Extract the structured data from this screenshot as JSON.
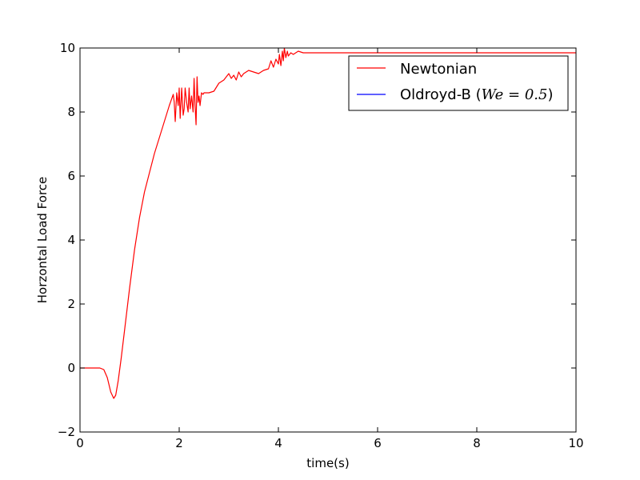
{
  "chart_data": {
    "type": "line",
    "xlabel": "time(s)",
    "ylabel": "Horzontal Load Force",
    "xlim": [
      0,
      10
    ],
    "ylim": [
      -2,
      10
    ],
    "xticks": [
      0,
      2,
      4,
      6,
      8,
      10
    ],
    "yticks": [
      -2,
      0,
      2,
      4,
      6,
      8,
      10
    ],
    "xtick_labels": [
      "0",
      "2",
      "4",
      "6",
      "8",
      "10"
    ],
    "ytick_labels": [
      "−2",
      "0",
      "2",
      "4",
      "6",
      "8",
      "10"
    ],
    "grid": false,
    "legend_position": "top-right",
    "series": [
      {
        "name": "Newtonian",
        "color": "#ff0000",
        "x": [
          0.0,
          0.2,
          0.4,
          0.48,
          0.55,
          0.62,
          0.68,
          0.72,
          0.77,
          0.83,
          0.9,
          1.0,
          1.1,
          1.2,
          1.3,
          1.4,
          1.5,
          1.6,
          1.7,
          1.8,
          1.88,
          1.9,
          1.92,
          1.95,
          1.98,
          2.0,
          2.02,
          2.05,
          2.08,
          2.1,
          2.12,
          2.15,
          2.18,
          2.2,
          2.22,
          2.25,
          2.28,
          2.3,
          2.32,
          2.34,
          2.36,
          2.38,
          2.4,
          2.42,
          2.45,
          2.48,
          2.5,
          2.55,
          2.6,
          2.7,
          2.8,
          2.9,
          3.0,
          3.05,
          3.1,
          3.15,
          3.2,
          3.25,
          3.3,
          3.4,
          3.5,
          3.6,
          3.7,
          3.8,
          3.85,
          3.9,
          3.95,
          4.0,
          4.02,
          4.05,
          4.08,
          4.1,
          4.12,
          4.15,
          4.18,
          4.2,
          4.25,
          4.3,
          4.4,
          4.5,
          4.6,
          4.8,
          5.0,
          6.0,
          7.0,
          8.0,
          9.0,
          10.0
        ],
        "values": [
          0.0,
          0.0,
          0.0,
          -0.05,
          -0.3,
          -0.75,
          -0.95,
          -0.85,
          -0.4,
          0.3,
          1.2,
          2.5,
          3.7,
          4.7,
          5.5,
          6.1,
          6.7,
          7.2,
          7.7,
          8.2,
          8.55,
          8.3,
          7.7,
          8.6,
          8.2,
          8.75,
          7.8,
          8.75,
          7.9,
          8.1,
          8.75,
          8.3,
          8.0,
          8.75,
          8.1,
          8.5,
          8.0,
          9.05,
          8.2,
          7.6,
          9.1,
          8.3,
          8.5,
          8.2,
          8.6,
          8.55,
          8.6,
          8.6,
          8.6,
          8.65,
          8.9,
          9.0,
          9.2,
          9.05,
          9.15,
          9.0,
          9.25,
          9.1,
          9.2,
          9.3,
          9.25,
          9.2,
          9.3,
          9.35,
          9.6,
          9.4,
          9.65,
          9.5,
          9.8,
          9.45,
          9.9,
          9.6,
          10.0,
          9.7,
          9.9,
          9.75,
          9.85,
          9.8,
          9.9,
          9.85,
          9.85,
          9.85,
          9.85,
          9.85,
          9.85,
          9.85,
          9.85,
          9.85
        ]
      },
      {
        "name": "Oldroyd-B",
        "color": "#0000ff",
        "x": [],
        "values": []
      }
    ],
    "legend": {
      "entries": [
        {
          "label": "Newtonian",
          "color": "#ff0000"
        },
        {
          "label": "Oldroyd-B (",
          "math": "We = 0.5",
          "suffix": ")",
          "color": "#0000ff"
        }
      ]
    }
  }
}
